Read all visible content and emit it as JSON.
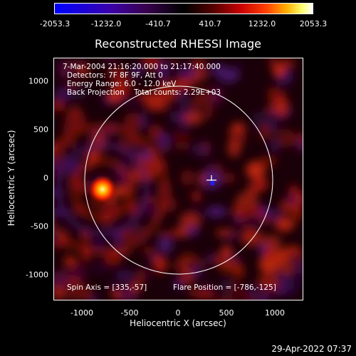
{
  "colorbar": {
    "ticks": [
      "-2053.3",
      "-1232.0",
      "-410.7",
      "410.7",
      "1232.0",
      "2053.3"
    ]
  },
  "plot": {
    "title": "Reconstructed RHESSI Image",
    "info_lines": [
      "7-Mar-2004 21:16:20.000 to 21:17:40.000",
      "Detectors: 7F 8F 9F, Att 0",
      "Energy Range: 6.0 - 12.0 keV",
      "Back Projection    Total counts: 2.29E+03"
    ],
    "spin_axis": "Spin Axis = [335,-57]",
    "flare_position": "Flare Position = [-786,-125]",
    "x_axis_title": "Heliocentric X (arcsec)",
    "y_axis_title": "Heliocentric Y (arcsec)",
    "x_ticks": [
      "-1000",
      "-500",
      "0",
      "500",
      "1000"
    ],
    "y_ticks": [
      "1000",
      "500",
      "0",
      "-500",
      "-1000"
    ]
  },
  "timestamp": "29-Apr-2022 07:37",
  "colors": {
    "background": "#000000",
    "foreground": "#ffffff"
  }
}
